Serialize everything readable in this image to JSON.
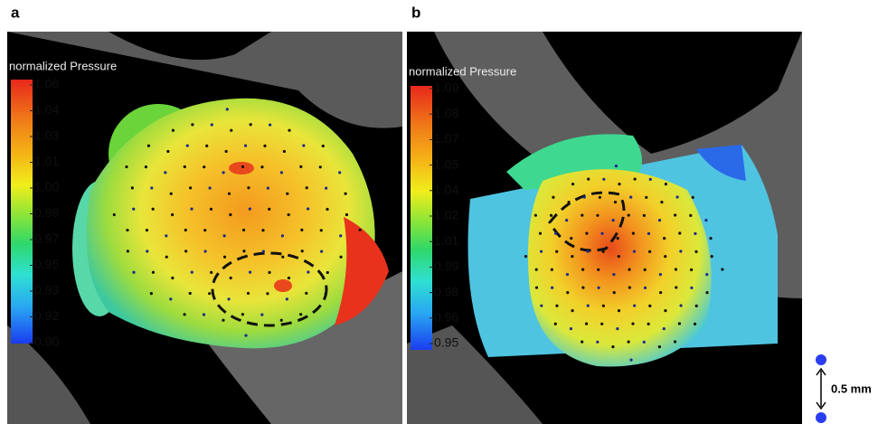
{
  "panels": [
    {
      "label": "a",
      "colorbar": {
        "title": "normalized Pressure",
        "ticks": [
          "1.06",
          "1.04",
          "1.03",
          "1.01",
          "1.00",
          "0.98",
          "0.97",
          "0.95",
          "0.93",
          "0.92",
          "0.90"
        ]
      }
    },
    {
      "label": "b",
      "colorbar": {
        "title": "normalized Pressure",
        "ticks": [
          "1.09",
          "1.08",
          "1.07",
          "1.05",
          "1.04",
          "1.02",
          "1.01",
          "0.99",
          "0.98",
          "0.96",
          "0.95"
        ]
      }
    }
  ],
  "scale_bar": {
    "label": "0.5 mm"
  }
}
